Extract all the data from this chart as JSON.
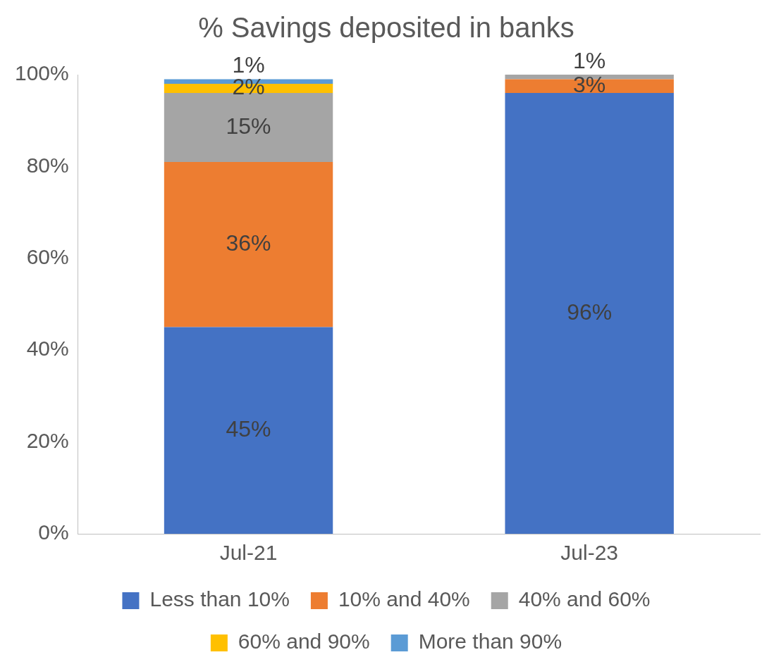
{
  "chart_data": {
    "type": "bar",
    "title": "% Savings deposited in banks",
    "stacked": true,
    "categories": [
      "Jul-21",
      "Jul-23"
    ],
    "series": [
      {
        "name": "Less than 10%",
        "color": "#4472c4",
        "values": [
          45,
          96
        ],
        "value_labels": [
          "45%",
          "96%"
        ]
      },
      {
        "name": "10% and 40%",
        "color": "#ed7d31",
        "values": [
          36,
          3
        ],
        "value_labels": [
          "36%",
          "3%"
        ]
      },
      {
        "name": "40% and 60%",
        "color": "#a5a5a5",
        "values": [
          15,
          1
        ],
        "value_labels": [
          "15%",
          "1%"
        ]
      },
      {
        "name": "60% and 90%",
        "color": "#ffc000",
        "values": [
          2,
          null
        ],
        "value_labels": [
          "2%",
          null
        ]
      },
      {
        "name": "More than 90%",
        "color": "#5b9bd5",
        "values": [
          1,
          null
        ],
        "value_labels": [
          "1%",
          null
        ]
      }
    ],
    "ylim": [
      0,
      100
    ],
    "yticks": [
      {
        "value": 0,
        "label": "0%"
      },
      {
        "value": 20,
        "label": "20%"
      },
      {
        "value": 40,
        "label": "40%"
      },
      {
        "value": 60,
        "label": "60%"
      },
      {
        "value": 80,
        "label": "80%"
      },
      {
        "value": 100,
        "label": "100%"
      }
    ],
    "grid": false,
    "legend": "bottom"
  }
}
